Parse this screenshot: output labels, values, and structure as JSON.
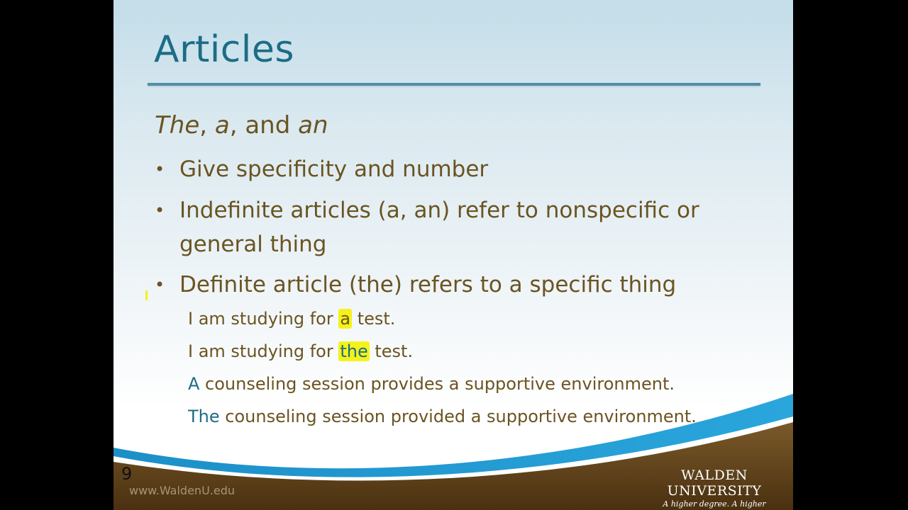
{
  "slide": {
    "title": "Articles",
    "subtitle": {
      "the": "The",
      "sep1": ", ",
      "a": "a",
      "sep2": ", and ",
      "an": "an"
    },
    "bullets": [
      "Give specificity and number",
      "Indefinite articles (a, an) refer to nonspecific or general thing",
      "Definite article (the) refers to a specific thing"
    ],
    "bullet_symbol": "•",
    "examples": [
      {
        "pre": "I am studying for ",
        "key": "a",
        "post": " test."
      },
      {
        "pre": "I am studying for ",
        "key": "the",
        "post": " test."
      },
      {
        "pre": "",
        "key": "A",
        "post": " counseling session provides a supportive environment."
      },
      {
        "pre": "",
        "key": "The",
        "post": " counseling session provided a supportive environment."
      }
    ],
    "slide_number": "9",
    "website": "www.WaldenU.edu",
    "university_name": "WALDEN UNIVERSITY",
    "university_tagline": "A higher degree. A higher purpose."
  },
  "colors": {
    "title": "#1d6c85",
    "text": "#6a5421",
    "highlight": "#f4f21a",
    "footer_brown": "#5a3d16",
    "footer_blue": "#1a9ad4"
  }
}
